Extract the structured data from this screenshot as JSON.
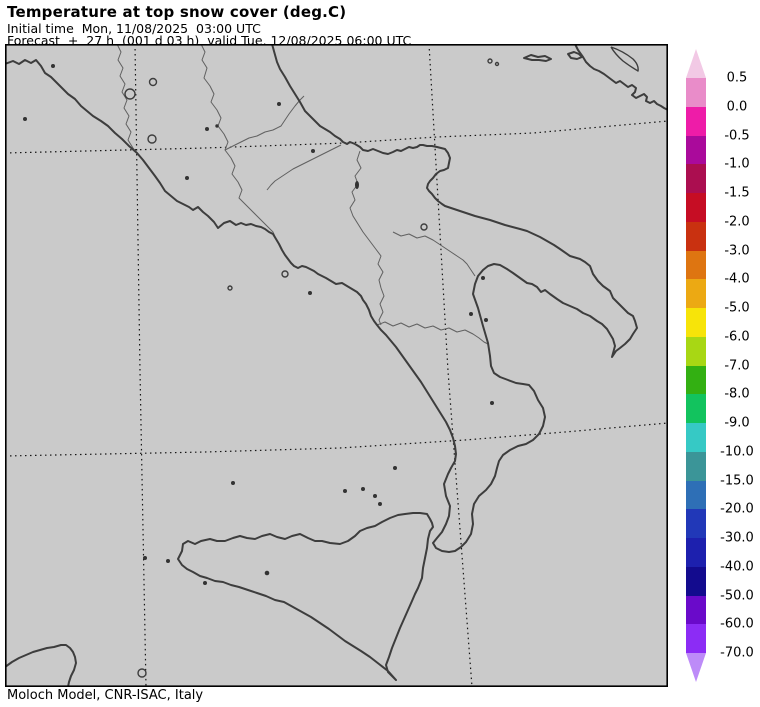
{
  "header": {
    "title": "Temperature at top snow cover (deg.C)",
    "initial_time_line": "Initial time  Mon, 11/08/2025  03:00 UTC",
    "forecast_line": "Forecast  +  27 h  (001 d 03 h)  valid Tue, 12/08/2025 06:00 UTC"
  },
  "footer": {
    "credit": "Moloch Model, CNR-ISAC, Italy"
  },
  "map": {
    "background_color": "#cacaca",
    "coastline_color": "#3d3d3d",
    "region_border_color": "#606060",
    "graticule_color": "#141414",
    "frame_color": "#000000"
  },
  "colorbar": {
    "unit": "deg.C",
    "boundary_labels": [
      "0.5",
      "0.0",
      "-0.5",
      "-1.0",
      "-1.5",
      "-2.0",
      "-3.0",
      "-4.0",
      "-5.0",
      "-6.0",
      "-7.0",
      "-8.0",
      "-9.0",
      "-10.0",
      "-15.0",
      "-20.0",
      "-30.0",
      "-40.0",
      "-50.0",
      "-60.0",
      "-70.0"
    ],
    "segment_colors": [
      "#e98cc9",
      "#ee1ca8",
      "#aa0a9b",
      "#ab0e50",
      "#c60d24",
      "#c93110",
      "#de7511",
      "#eca913",
      "#f7e409",
      "#a8d714",
      "#33b012",
      "#12c35e",
      "#36c9c5",
      "#3b9598",
      "#2e6fb6",
      "#2138b8",
      "#1d20ae",
      "#130b8e",
      "#6a0aca",
      "#8c2cf5"
    ],
    "arrow_top_color": "#f2c9e5",
    "arrow_bottom_color": "#bd8bf8"
  }
}
